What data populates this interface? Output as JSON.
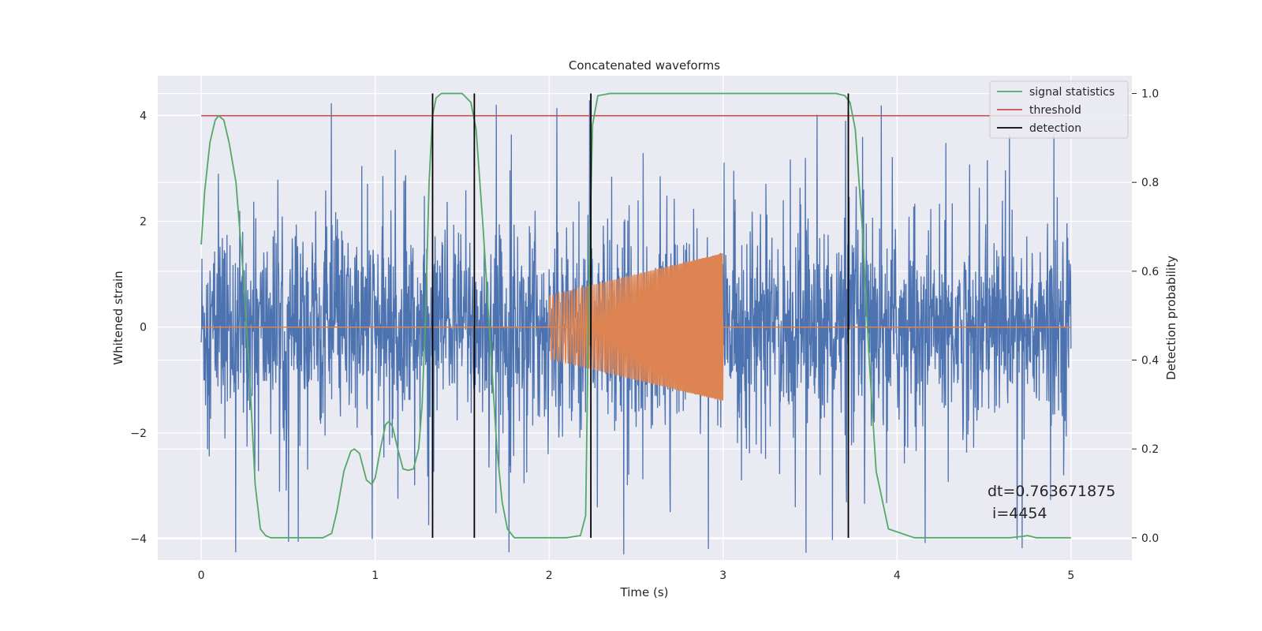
{
  "chart_data": {
    "type": "line",
    "title": "Concatenated waveforms",
    "xlabel": "Time (s)",
    "ylabel": "Whitened strain",
    "y2label": "Detection probability",
    "xlim": [
      -0.25,
      5.35
    ],
    "ylim": [
      -4.4,
      4.75
    ],
    "y2lim": [
      -0.05,
      1.04
    ],
    "x_ticks": [
      0,
      1,
      2,
      3,
      4,
      5
    ],
    "y_ticks": [
      -4,
      -2,
      0,
      2,
      4
    ],
    "y2_ticks": [
      0.0,
      0.2,
      0.4,
      0.6,
      0.8,
      1.0
    ],
    "grid": true,
    "legend_position": "top-right",
    "series": [
      {
        "name": "",
        "kind": "noise",
        "color": "#4c72b0",
        "x_range": [
          0,
          5
        ],
        "typical_amplitude": 1.5,
        "peak_amplitude": 4.3
      },
      {
        "name": "",
        "kind": "chirp",
        "color": "#dd8452",
        "x_range": [
          2,
          3
        ],
        "amplitude_start": 0.6,
        "amplitude_end": 1.4,
        "baseline": 0
      },
      {
        "name": "signal statistics",
        "axis": "right",
        "color": "#55a868",
        "x": [
          0,
          0.02,
          0.05,
          0.08,
          0.1,
          0.13,
          0.16,
          0.2,
          0.24,
          0.28,
          0.31,
          0.34,
          0.37,
          0.4,
          0.5,
          0.6,
          0.7,
          0.75,
          0.78,
          0.82,
          0.86,
          0.88,
          0.91,
          0.95,
          0.98,
          1.0,
          1.03,
          1.06,
          1.08,
          1.1,
          1.13,
          1.16,
          1.19,
          1.22,
          1.25,
          1.27,
          1.29,
          1.31,
          1.33,
          1.35,
          1.38,
          1.42,
          1.5,
          1.55,
          1.58,
          1.62,
          1.66,
          1.7,
          1.73,
          1.76,
          1.8,
          1.9,
          2.0,
          2.1,
          2.18,
          2.21,
          2.23,
          2.25,
          2.28,
          2.35,
          2.5,
          3.0,
          3.5,
          3.65,
          3.7,
          3.73,
          3.76,
          3.8,
          3.84,
          3.88,
          3.95,
          4.1,
          4.4,
          4.65,
          4.72,
          4.75,
          4.8,
          5.0
        ],
        "y": [
          0.66,
          0.78,
          0.89,
          0.94,
          0.95,
          0.94,
          0.89,
          0.8,
          0.6,
          0.35,
          0.12,
          0.02,
          0.005,
          0.0,
          0.0,
          0.0,
          0.0,
          0.01,
          0.06,
          0.15,
          0.195,
          0.2,
          0.19,
          0.13,
          0.12,
          0.135,
          0.2,
          0.255,
          0.262,
          0.25,
          0.2,
          0.155,
          0.152,
          0.155,
          0.2,
          0.3,
          0.5,
          0.8,
          0.95,
          0.99,
          1.0,
          1.0,
          1.0,
          0.98,
          0.92,
          0.7,
          0.45,
          0.2,
          0.08,
          0.02,
          0.0,
          0.0,
          0.0,
          0.0,
          0.005,
          0.05,
          0.6,
          0.93,
          0.995,
          1.0,
          1.0,
          1.0,
          1.0,
          1.0,
          0.995,
          0.98,
          0.92,
          0.7,
          0.4,
          0.15,
          0.02,
          0.0,
          0.0,
          0.0,
          0.003,
          0.005,
          0.0,
          0.0
        ]
      },
      {
        "name": "threshold",
        "axis": "right",
        "color": "#c44e52",
        "x": [
          0,
          5
        ],
        "y": [
          0.95,
          0.95
        ]
      },
      {
        "name": "detection",
        "axis": "right",
        "color": "#000000",
        "vlines": [
          1.33,
          1.57,
          2.24,
          3.72
        ],
        "y_range": [
          0.0,
          1.0
        ]
      }
    ],
    "annotation": {
      "lines": [
        "dt=0.763671875",
        " i=4454"
      ],
      "x": 4.5,
      "y": -3.0
    }
  }
}
